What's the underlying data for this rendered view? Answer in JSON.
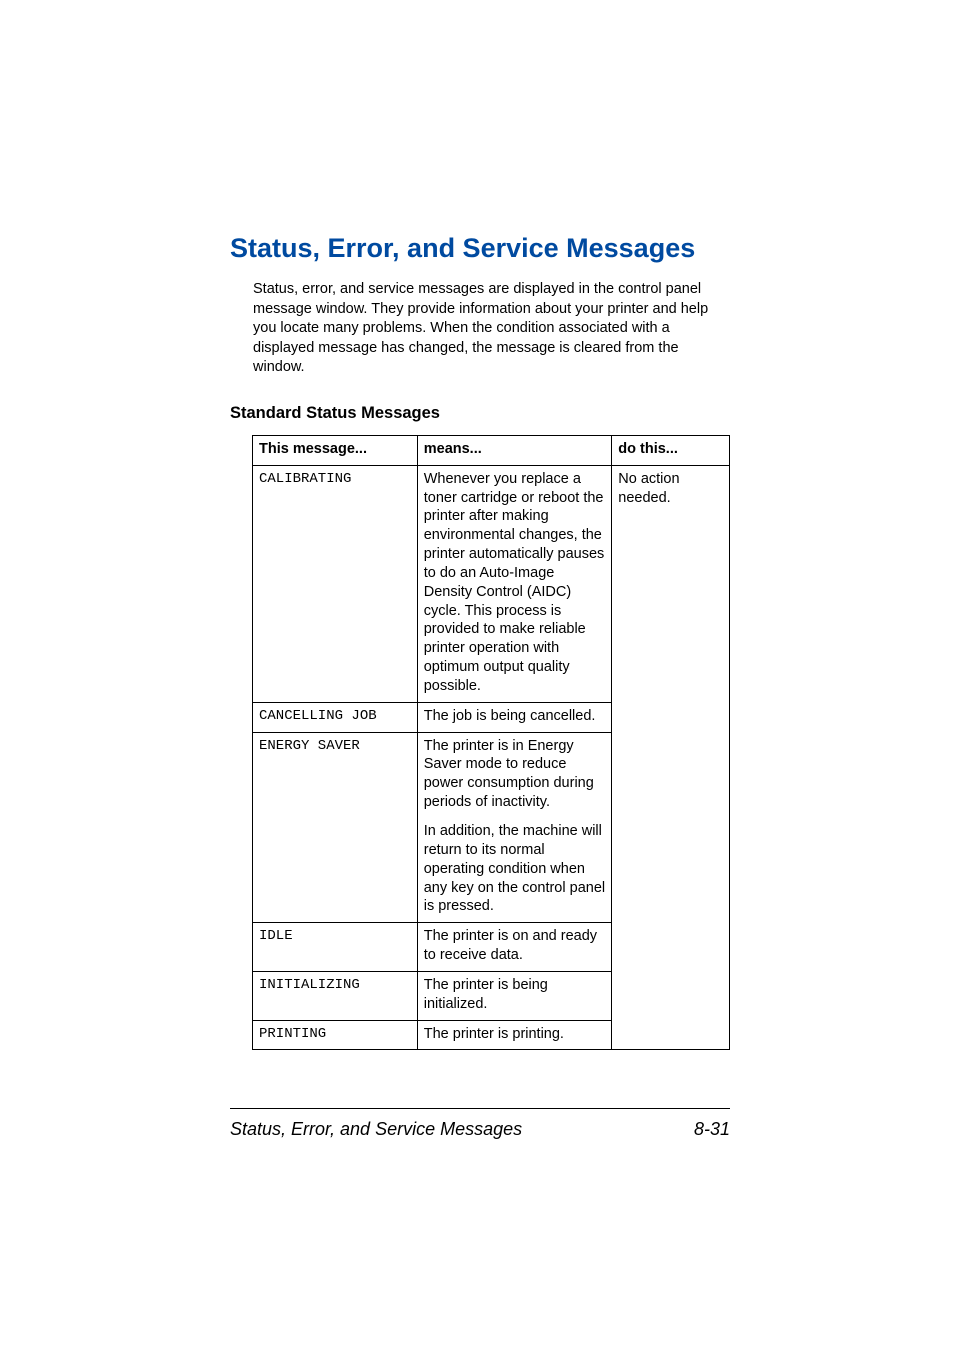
{
  "main_title": "Status, Error, and Service Messages",
  "intro": "Status, error, and service messages are displayed in the control panel message window. They provide information about your printer and help you locate many problems. When the condition associated with a displayed message has changed, the message is cleared from the window.",
  "sub_heading": "Standard Status Messages",
  "table": {
    "headers": {
      "col1": "This message...",
      "col2": "means...",
      "col3": "do this..."
    },
    "rows": [
      {
        "msg": "CALIBRATING",
        "means": "Whenever you replace a toner cartridge or reboot the printer after making environmental changes, the printer automatically pauses to do an Auto-Image Density Control (AIDC) cycle. This process is provided to make reliable printer operation with optimum output quality possible."
      },
      {
        "msg": "CANCELLING JOB",
        "means": "The job is being cancelled."
      },
      {
        "msg": "ENERGY SAVER",
        "means": "The printer is in Energy Saver mode to reduce power consumption during periods of inactivity.",
        "means2": "In addition, the machine will return to its normal operating condition when any key on the control panel is pressed."
      },
      {
        "msg": "IDLE",
        "means": "The printer is on and ready to receive data."
      },
      {
        "msg": "INITIALIZING",
        "means": "The printer is being initialized."
      },
      {
        "msg": "PRINTING",
        "means": "The printer is printing."
      }
    ],
    "action": "No action needed."
  },
  "footer": {
    "title": "Status, Error, and Service Messages",
    "page": "8-31"
  },
  "colors": {
    "title_color": "#004aa0",
    "text_color": "#000000",
    "background": "#ffffff"
  }
}
